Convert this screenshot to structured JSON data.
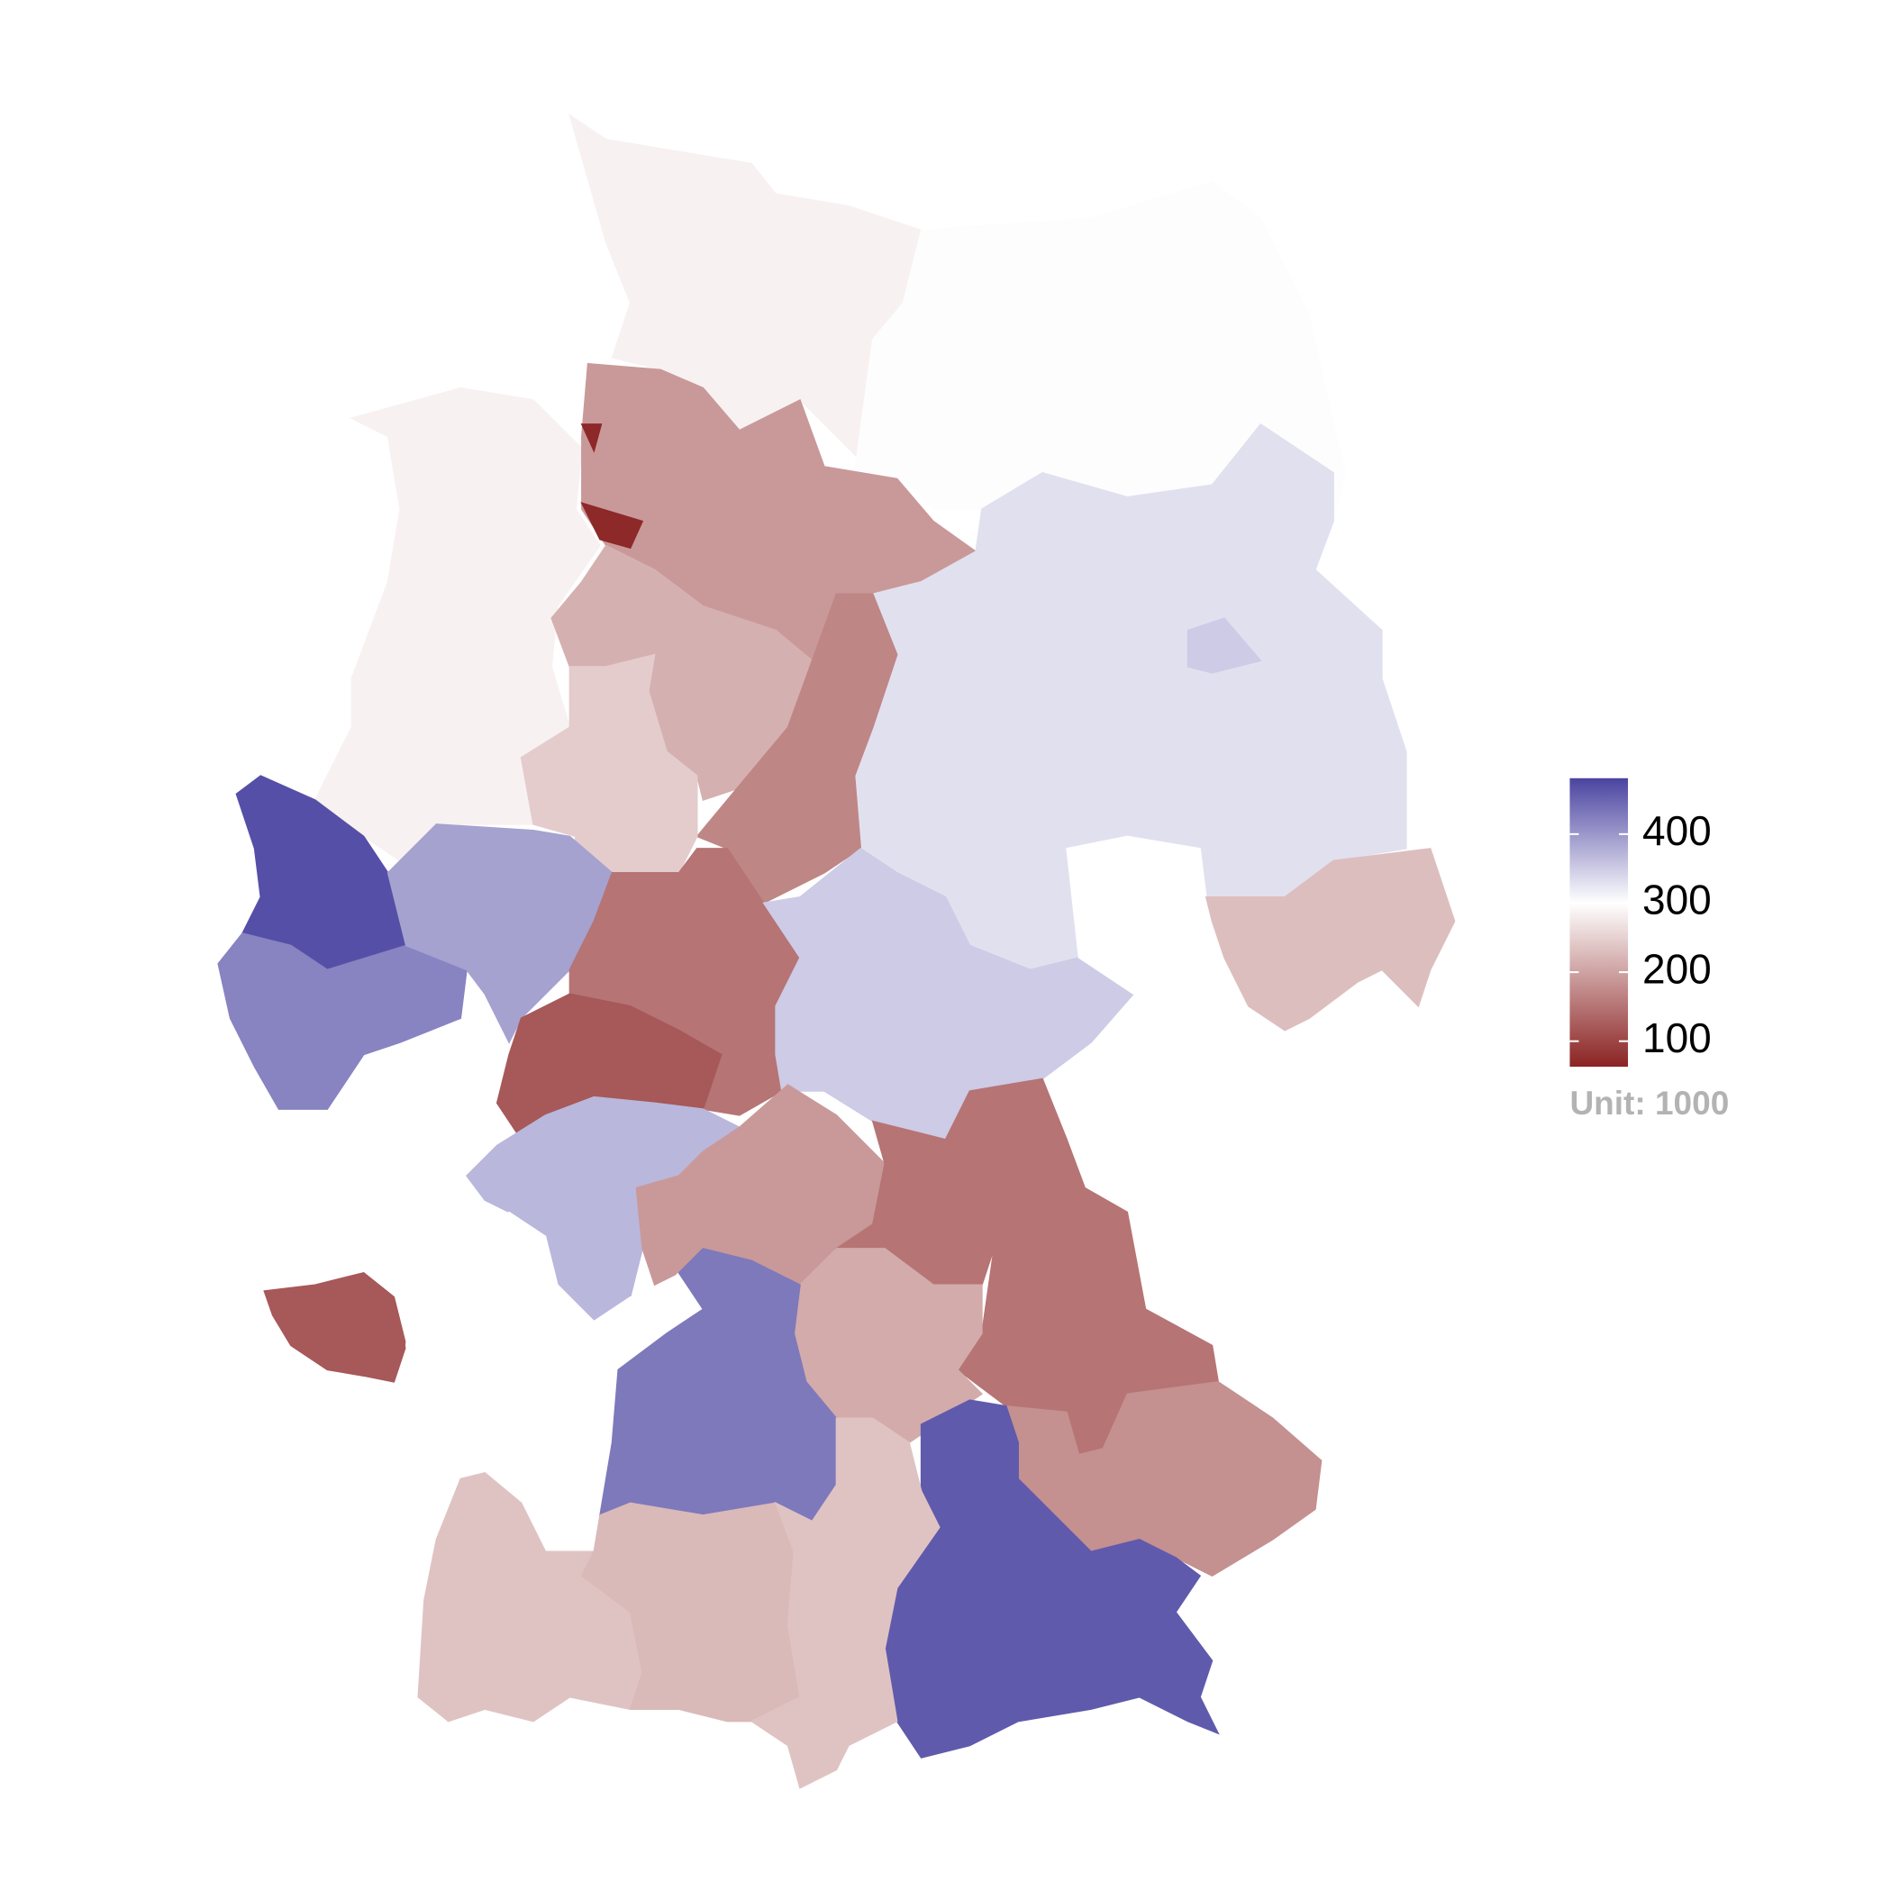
{
  "chart_data": {
    "type": "choropleth",
    "values": [
      285,
      302,
      285,
      190,
      70,
      330,
      350,
      330,
      215,
      170,
      245,
      470,
      420,
      390,
      150,
      120,
      350,
      300,
      230,
      370,
      190,
      150,
      150,
      120,
      300,
      210,
      430,
      180,
      460,
      235,
      225,
      235
    ],
    "colorbar": {
      "lim": [
        63,
        481
      ],
      "ticks": [
        100,
        200,
        300,
        400
      ],
      "mid": 300,
      "colors": [
        "#8b2323",
        "#ffffff",
        "#4b44a1"
      ],
      "title": "Unit: 1000"
    }
  }
}
